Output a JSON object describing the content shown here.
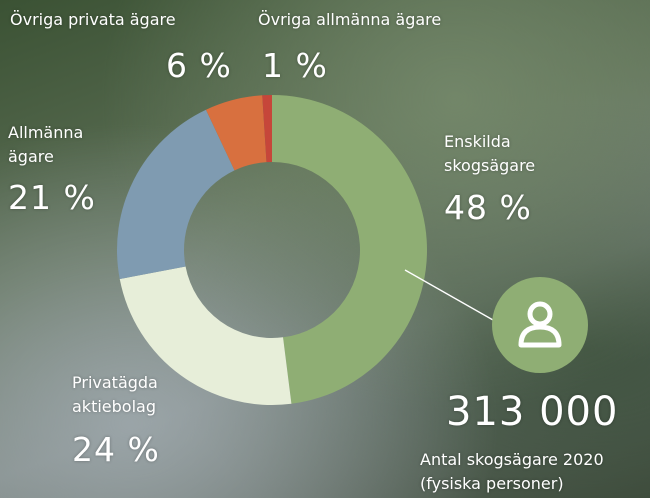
{
  "chart_data": {
    "type": "pie",
    "categories": [
      "Enskilda skogsägare",
      "Privatägda aktiebolag",
      "Allmänna ägare",
      "Övriga privata ägare",
      "Övriga allmänna ägare"
    ],
    "values": [
      48,
      24,
      21,
      6,
      1
    ],
    "value_labels": [
      "48 %",
      "24 %",
      "21 %",
      "6 %",
      "1 %"
    ],
    "colors": [
      "#8fae74",
      "#e7eed9",
      "#7f9bb1",
      "#d8703f",
      "#c6463a"
    ],
    "callout": {
      "value_label": "313 000",
      "text": "Antal skogsägare 2020 (fysiska personer)"
    }
  }
}
